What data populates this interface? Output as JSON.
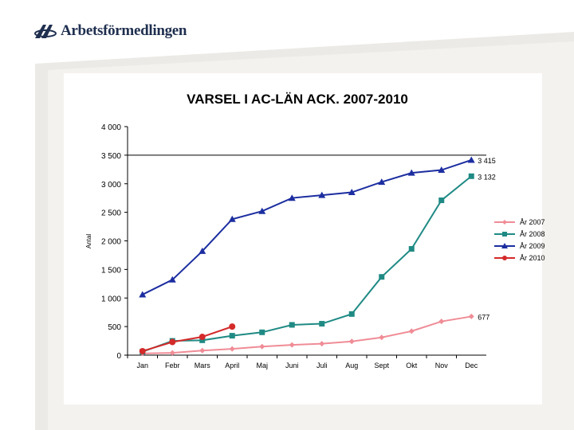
{
  "header": {
    "logo_text": "Arbetsförmedlingen",
    "logo_color": "#1f2f4f"
  },
  "chart_data": {
    "type": "line",
    "title": "VARSEL I AC-LÄN ACK. 2007-2010",
    "xlabel": "",
    "ylabel": "Antal",
    "categories": [
      "Jan",
      "Febr",
      "Mars",
      "April",
      "Maj",
      "Juni",
      "Juli",
      "Aug",
      "Sept",
      "Okt",
      "Nov",
      "Dec"
    ],
    "ylim": [
      0,
      4000
    ],
    "yticks": [
      0,
      500,
      1000,
      1500,
      2000,
      2500,
      3000,
      3500,
      4000
    ],
    "ytick_labels": [
      "0",
      "500",
      "1 000",
      "1 500",
      "2 000",
      "2 500",
      "3 000",
      "3 500",
      "4 000"
    ],
    "grid": false,
    "reference_line_y": 3500,
    "legend_position": "right",
    "series": [
      {
        "name": "År 2007",
        "color": "#f08c96",
        "marker": "diamond",
        "values": [
          30,
          40,
          80,
          110,
          150,
          180,
          200,
          240,
          310,
          420,
          590,
          677
        ],
        "end_label": "677"
      },
      {
        "name": "År 2008",
        "color": "#1f8a84",
        "marker": "square",
        "values": [
          60,
          250,
          260,
          340,
          400,
          530,
          550,
          720,
          1370,
          1860,
          2710,
          3132
        ],
        "end_label": "3 132"
      },
      {
        "name": "År 2009",
        "color": "#1c2ea0",
        "marker": "triangle",
        "values": [
          1060,
          1320,
          1820,
          2380,
          2520,
          2750,
          2800,
          2850,
          3030,
          3190,
          3240,
          3415
        ],
        "end_label": "3 415"
      },
      {
        "name": "År 2010",
        "color": "#d42a2a",
        "marker": "circle",
        "values": [
          70,
          230,
          320,
          500,
          null,
          null,
          null,
          null,
          null,
          null,
          null,
          null
        ],
        "end_label": ""
      }
    ]
  }
}
